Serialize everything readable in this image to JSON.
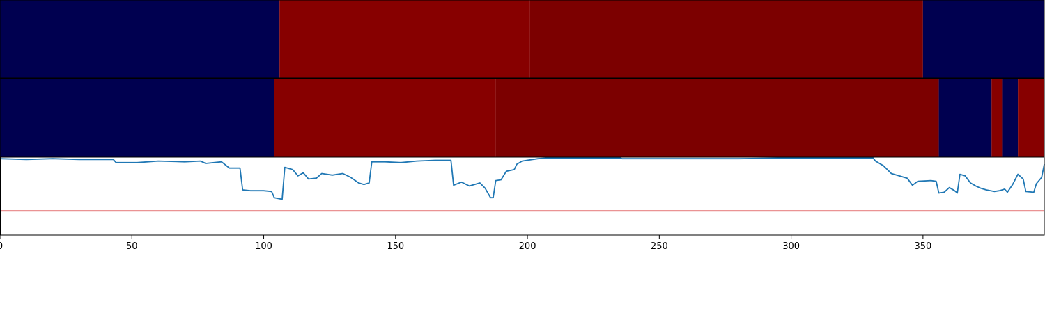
{
  "chart_data": [
    {
      "type": "heatmap",
      "xlim": [
        0,
        396
      ],
      "colors": {
        "low": "#000050",
        "mid_high": "#870000",
        "high": "#7c0000"
      },
      "segments": [
        {
          "x0": 0,
          "x1": 106,
          "color": "#000050"
        },
        {
          "x0": 106,
          "x1": 201,
          "color": "#870000"
        },
        {
          "x0": 201,
          "x1": 350,
          "color": "#7c0000"
        },
        {
          "x0": 350,
          "x1": 396,
          "color": "#000050"
        }
      ]
    },
    {
      "type": "heatmap",
      "xlim": [
        0,
        396
      ],
      "segments": [
        {
          "x0": 0,
          "x1": 104,
          "color": "#000050"
        },
        {
          "x0": 104,
          "x1": 188,
          "color": "#870000"
        },
        {
          "x0": 188,
          "x1": 356,
          "color": "#7c0000"
        },
        {
          "x0": 356,
          "x1": 376,
          "color": "#000050"
        },
        {
          "x0": 376,
          "x1": 380,
          "color": "#870000"
        },
        {
          "x0": 380,
          "x1": 386,
          "color": "#000050"
        },
        {
          "x0": 386,
          "x1": 396,
          "color": "#870000"
        }
      ]
    },
    {
      "type": "line",
      "xlim": [
        0,
        396
      ],
      "ylim": [
        0,
        1
      ],
      "threshold": {
        "y": 0.31,
        "color": "#d62728"
      },
      "series": [
        {
          "color": "#1f77b4",
          "points": [
            [
              0,
              0.98
            ],
            [
              10,
              0.97
            ],
            [
              20,
              0.98
            ],
            [
              30,
              0.97
            ],
            [
              43,
              0.97
            ],
            [
              44,
              0.93
            ],
            [
              52,
              0.93
            ],
            [
              60,
              0.95
            ],
            [
              70,
              0.94
            ],
            [
              76,
              0.95
            ],
            [
              78,
              0.92
            ],
            [
              84,
              0.94
            ],
            [
              87,
              0.86
            ],
            [
              91,
              0.86
            ],
            [
              92,
              0.58
            ],
            [
              95,
              0.57
            ],
            [
              100,
              0.57
            ],
            [
              103,
              0.56
            ],
            [
              104,
              0.48
            ],
            [
              107,
              0.46
            ],
            [
              108,
              0.87
            ],
            [
              111,
              0.84
            ],
            [
              113,
              0.76
            ],
            [
              115,
              0.8
            ],
            [
              117,
              0.72
            ],
            [
              120,
              0.73
            ],
            [
              122,
              0.79
            ],
            [
              126,
              0.77
            ],
            [
              130,
              0.79
            ],
            [
              133,
              0.74
            ],
            [
              136,
              0.67
            ],
            [
              138,
              0.65
            ],
            [
              140,
              0.67
            ],
            [
              141,
              0.94
            ],
            [
              146,
              0.94
            ],
            [
              152,
              0.93
            ],
            [
              158,
              0.95
            ],
            [
              165,
              0.96
            ],
            [
              171,
              0.96
            ],
            [
              172,
              0.64
            ],
            [
              175,
              0.68
            ],
            [
              178,
              0.63
            ],
            [
              182,
              0.67
            ],
            [
              184,
              0.6
            ],
            [
              186,
              0.48
            ],
            [
              187,
              0.48
            ],
            [
              188,
              0.7
            ],
            [
              190,
              0.71
            ],
            [
              192,
              0.82
            ],
            [
              195,
              0.84
            ],
            [
              196,
              0.91
            ],
            [
              198,
              0.95
            ],
            [
              204,
              0.98
            ],
            [
              208,
              0.99
            ],
            [
              215,
              0.99
            ],
            [
              235,
              0.99
            ],
            [
              236,
              0.98
            ],
            [
              260,
              0.98
            ],
            [
              280,
              0.98
            ],
            [
              300,
              0.99
            ],
            [
              331,
              0.99
            ],
            [
              332,
              0.95
            ],
            [
              335,
              0.89
            ],
            [
              338,
              0.79
            ],
            [
              341,
              0.76
            ],
            [
              344,
              0.73
            ],
            [
              346,
              0.64
            ],
            [
              348,
              0.69
            ],
            [
              353,
              0.7
            ],
            [
              355,
              0.69
            ],
            [
              356,
              0.54
            ],
            [
              358,
              0.55
            ],
            [
              360,
              0.61
            ],
            [
              362,
              0.57
            ],
            [
              363,
              0.54
            ],
            [
              364,
              0.78
            ],
            [
              366,
              0.76
            ],
            [
              368,
              0.67
            ],
            [
              370,
              0.63
            ],
            [
              372,
              0.6
            ],
            [
              374,
              0.58
            ],
            [
              377,
              0.56
            ],
            [
              379,
              0.57
            ],
            [
              381,
              0.59
            ],
            [
              382,
              0.55
            ],
            [
              384,
              0.65
            ],
            [
              386,
              0.78
            ],
            [
              388,
              0.72
            ],
            [
              389,
              0.56
            ],
            [
              392,
              0.55
            ],
            [
              393,
              0.66
            ],
            [
              395,
              0.74
            ],
            [
              396,
              0.91
            ]
          ]
        }
      ],
      "xticks": [
        0,
        50,
        100,
        150,
        200,
        250,
        300,
        350
      ],
      "xtick_labels": [
        "0",
        "50",
        "100",
        "150",
        "200",
        "250",
        "300",
        "350"
      ]
    }
  ]
}
